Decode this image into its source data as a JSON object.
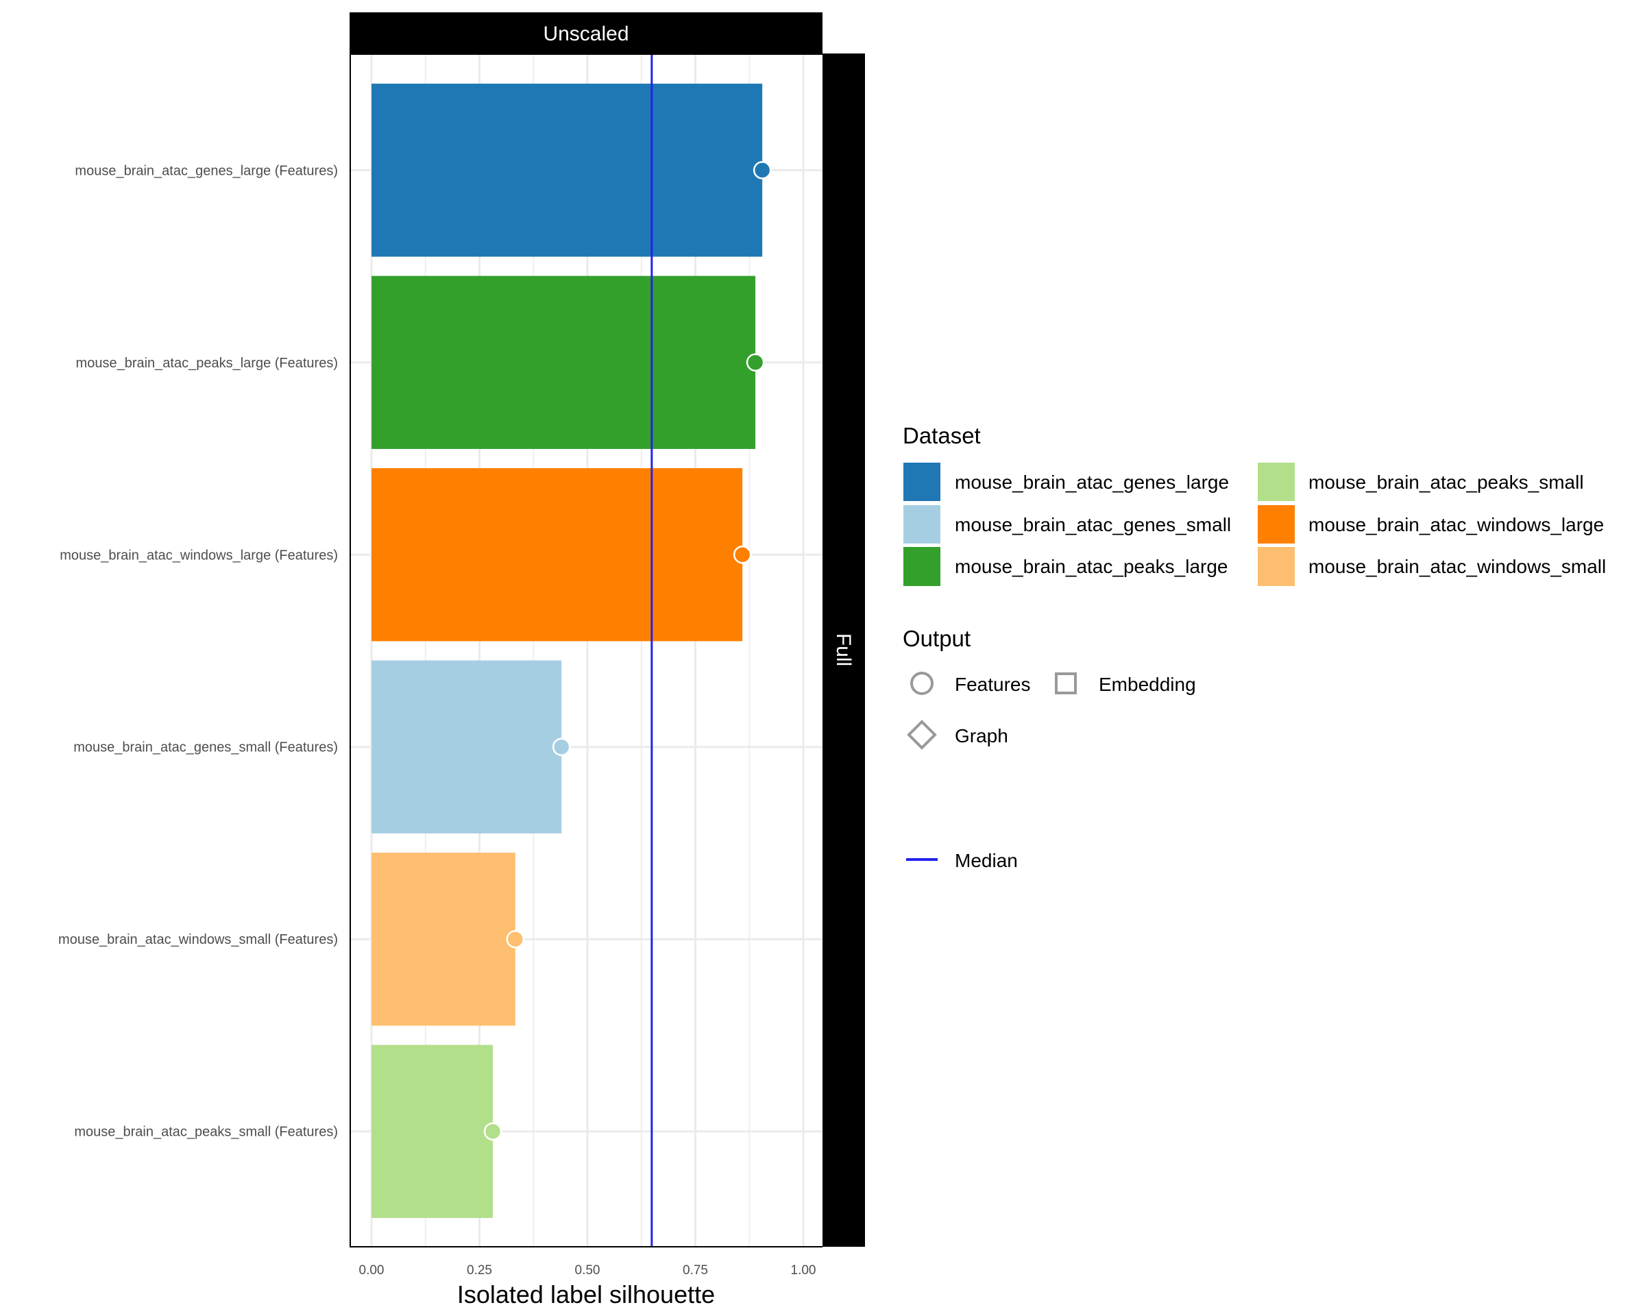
{
  "chart_data": {
    "type": "bar",
    "orientation": "horizontal",
    "facet_top": "Unscaled",
    "facet_right": "Full",
    "xlabel": "Isolated label silhouette",
    "ylabel": "",
    "xlim": [
      -0.05,
      1.045
    ],
    "x_ticks": [
      "0.00",
      "0.25",
      "0.50",
      "0.75",
      "1.00"
    ],
    "x_tick_values": [
      0,
      0.25,
      0.5,
      0.75,
      1.0
    ],
    "grid": true,
    "median": 0.649,
    "categories": [
      "mouse_brain_atac_genes_large (Features)",
      "mouse_brain_atac_peaks_large (Features)",
      "mouse_brain_atac_windows_large (Features)",
      "mouse_brain_atac_genes_small (Features)",
      "mouse_brain_atac_windows_small (Features)",
      "mouse_brain_atac_peaks_small (Features)"
    ],
    "values": [
      0.905,
      0.889,
      0.859,
      0.44,
      0.333,
      0.281
    ],
    "dataset": [
      "mouse_brain_atac_genes_large",
      "mouse_brain_atac_peaks_large",
      "mouse_brain_atac_windows_large",
      "mouse_brain_atac_genes_small",
      "mouse_brain_atac_windows_small",
      "mouse_brain_atac_peaks_small"
    ],
    "output": [
      "Features",
      "Features",
      "Features",
      "Features",
      "Features",
      "Features"
    ],
    "colors": [
      "#1f78b4",
      "#33a02c",
      "#ff7f00",
      "#a6cee3",
      "#fdbf6f",
      "#b2df8a"
    ],
    "median_color": "#2222ee",
    "legend": {
      "position": "right",
      "dataset_title": "Dataset",
      "dataset_items": [
        {
          "label": "mouse_brain_atac_genes_large",
          "color": "#1f78b4"
        },
        {
          "label": "mouse_brain_atac_genes_small",
          "color": "#a6cee3"
        },
        {
          "label": "mouse_brain_atac_peaks_large",
          "color": "#33a02c"
        },
        {
          "label": "mouse_brain_atac_peaks_small",
          "color": "#b2df8a"
        },
        {
          "label": "mouse_brain_atac_windows_large",
          "color": "#ff7f00"
        },
        {
          "label": "mouse_brain_atac_windows_small",
          "color": "#fdbf6f"
        }
      ],
      "output_title": "Output",
      "output_items": [
        {
          "label": "Features",
          "shape": "circle"
        },
        {
          "label": "Embedding",
          "shape": "square"
        },
        {
          "label": "Graph",
          "shape": "diamond"
        }
      ],
      "median_label": "Median"
    }
  }
}
